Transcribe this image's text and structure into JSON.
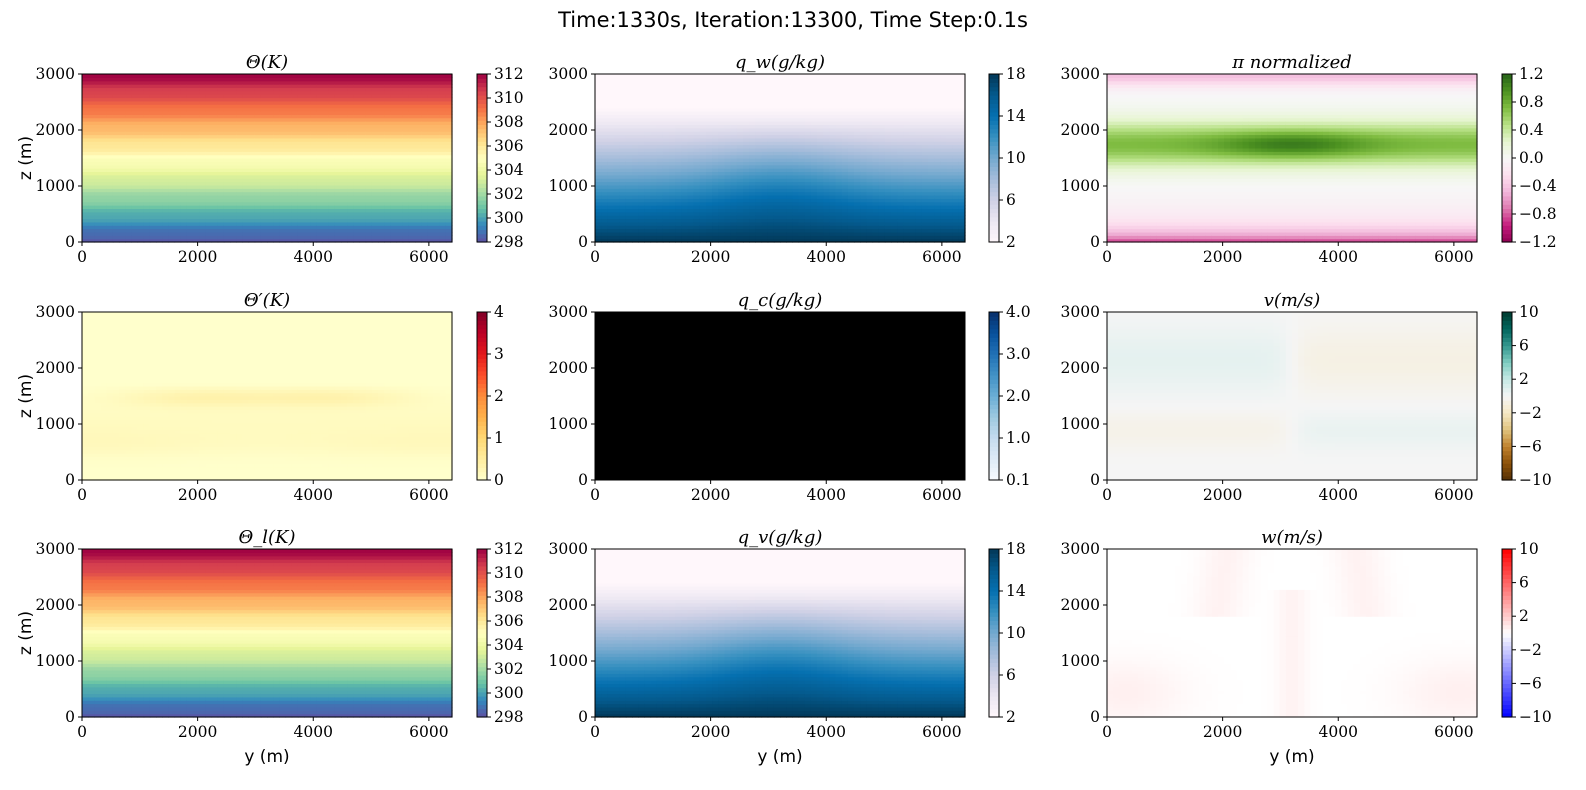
{
  "figure": {
    "suptitle": "Time:1330s, Iteration:13300, Time Step:0.1s"
  },
  "chart_data": [
    {
      "type": "heatmap",
      "title": "Θ(K)",
      "xlabel": "",
      "ylabel": "z (m)",
      "xlim": [
        0,
        6400
      ],
      "ylim": [
        0,
        3000
      ],
      "xticks": [
        0,
        2000,
        4000,
        6000
      ],
      "yticks": [
        0,
        1000,
        2000,
        3000
      ],
      "field": "theta",
      "colormap": "Spectral_r",
      "range": [
        298,
        312
      ],
      "colorbar_ticks": [
        "312",
        "310",
        "308",
        "306",
        "304",
        "302",
        "300",
        "298"
      ]
    },
    {
      "type": "heatmap",
      "title": "q_w(g/kg)",
      "xlabel": "",
      "ylabel": "",
      "xlim": [
        0,
        6400
      ],
      "ylim": [
        0,
        3000
      ],
      "xticks": [
        0,
        2000,
        4000,
        6000
      ],
      "yticks": [
        0,
        1000,
        2000,
        3000
      ],
      "field": "moisture",
      "colormap": "PuBu",
      "range": [
        2,
        18
      ],
      "colorbar_ticks": [
        "18",
        "14",
        "10",
        "6",
        "2"
      ]
    },
    {
      "type": "heatmap",
      "title": "π normalized",
      "xlabel": "",
      "ylabel": "",
      "xlim": [
        0,
        6400
      ],
      "ylim": [
        0,
        3000
      ],
      "xticks": [
        0,
        2000,
        4000,
        6000
      ],
      "yticks": [
        0,
        1000,
        2000,
        3000
      ],
      "field": "pi",
      "colormap": "PiYG",
      "range": [
        -1.2,
        1.2
      ],
      "colorbar_ticks": [
        "1.2",
        "0.8",
        "0.4",
        "0.0",
        "−0.4",
        "−0.8",
        "−1.2"
      ]
    },
    {
      "type": "heatmap",
      "title": "Θ′(K)",
      "xlabel": "",
      "ylabel": "z (m)",
      "xlim": [
        0,
        6400
      ],
      "ylim": [
        0,
        3000
      ],
      "xticks": [
        0,
        2000,
        4000,
        6000
      ],
      "yticks": [
        0,
        1000,
        2000,
        3000
      ],
      "field": "thetaprime",
      "colormap": "YlOrRd",
      "range": [
        0,
        4
      ],
      "colorbar_ticks": [
        "4",
        "3",
        "2",
        "1",
        "0"
      ]
    },
    {
      "type": "heatmap",
      "title": "q_c(g/kg)",
      "xlabel": "",
      "ylabel": "",
      "xlim": [
        0,
        6400
      ],
      "ylim": [
        0,
        3000
      ],
      "xticks": [
        0,
        2000,
        4000,
        6000
      ],
      "yticks": [
        0,
        1000,
        2000,
        3000
      ],
      "field": "black",
      "colormap": "Blues",
      "range": [
        0.1,
        4.0
      ],
      "colorbar_ticks": [
        "4.0",
        "3.0",
        "2.0",
        "1.0",
        "0.1"
      ]
    },
    {
      "type": "heatmap",
      "title": "v(m/s)",
      "xlabel": "",
      "ylabel": "",
      "xlim": [
        0,
        6400
      ],
      "ylim": [
        0,
        3000
      ],
      "xticks": [
        0,
        2000,
        4000,
        6000
      ],
      "yticks": [
        0,
        1000,
        2000,
        3000
      ],
      "field": "v",
      "colormap": "BrBG",
      "range": [
        -10,
        10
      ],
      "colorbar_ticks": [
        "10",
        "6",
        "2",
        "−2",
        "−6",
        "−10"
      ]
    },
    {
      "type": "heatmap",
      "title": "Θ_l(K)",
      "xlabel": "y (m)",
      "ylabel": "z (m)",
      "xlim": [
        0,
        6400
      ],
      "ylim": [
        0,
        3000
      ],
      "xticks": [
        0,
        2000,
        4000,
        6000
      ],
      "yticks": [
        0,
        1000,
        2000,
        3000
      ],
      "field": "theta",
      "colormap": "Spectral_r",
      "range": [
        298,
        312
      ],
      "colorbar_ticks": [
        "312",
        "310",
        "308",
        "306",
        "304",
        "302",
        "300",
        "298"
      ]
    },
    {
      "type": "heatmap",
      "title": "q_v(g/kg)",
      "xlabel": "y (m)",
      "ylabel": "",
      "xlim": [
        0,
        6400
      ],
      "ylim": [
        0,
        3000
      ],
      "xticks": [
        0,
        2000,
        4000,
        6000
      ],
      "yticks": [
        0,
        1000,
        2000,
        3000
      ],
      "field": "moisture",
      "colormap": "PuBu",
      "range": [
        2,
        18
      ],
      "colorbar_ticks": [
        "18",
        "14",
        "10",
        "6",
        "2"
      ]
    },
    {
      "type": "heatmap",
      "title": "w(m/s)",
      "xlabel": "y (m)",
      "ylabel": "",
      "xlim": [
        0,
        6400
      ],
      "ylim": [
        0,
        3000
      ],
      "xticks": [
        0,
        2000,
        4000,
        6000
      ],
      "yticks": [
        0,
        1000,
        2000,
        3000
      ],
      "field": "w",
      "colormap": "bwr",
      "range": [
        -10,
        10
      ],
      "colorbar_ticks": [
        "10",
        "6",
        "2",
        "−2",
        "−6",
        "−10"
      ]
    }
  ]
}
